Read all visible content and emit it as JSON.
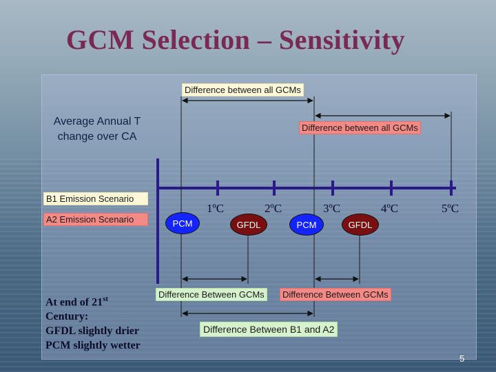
{
  "slide": {
    "title": "GCM Selection – Sensitivity",
    "page_number": "5"
  },
  "labels": {
    "top_range": "Difference between all GCMs",
    "b2_range": "Difference between all GCMs",
    "avg_line1": "Average Annual T",
    "avg_line2": "change over CA",
    "b1_scenario": "B1 Emission Scenario",
    "a2_scenario": "A2 Emission Scenario",
    "between_gcms_left": "Difference Between GCMs",
    "between_gcms_right": "Difference Between GCMs",
    "between_b1_a2": "Difference Between B1 and A2"
  },
  "scale": {
    "ticks": [
      {
        "label": "1ºC"
      },
      {
        "label": "2ºC"
      },
      {
        "label": "3ºC"
      },
      {
        "label": "4ºC"
      },
      {
        "label": "5ºC"
      }
    ]
  },
  "models": {
    "b1_pcm": "PCM",
    "b1_gfdl": "GFDL",
    "a2_pcm": "PCM",
    "a2_gfdl": "GFDL"
  },
  "note": {
    "line1_main": "At end of 21",
    "line1_sup": "st",
    "line2": "Century:",
    "line3": "GFDL slightly drier",
    "line4": "PCM slightly wetter"
  },
  "colors": {
    "title": "#7a2a52",
    "pcm": "#1424ff",
    "gfdl": "#7a0f12",
    "axis": "#2a1a8a"
  }
}
